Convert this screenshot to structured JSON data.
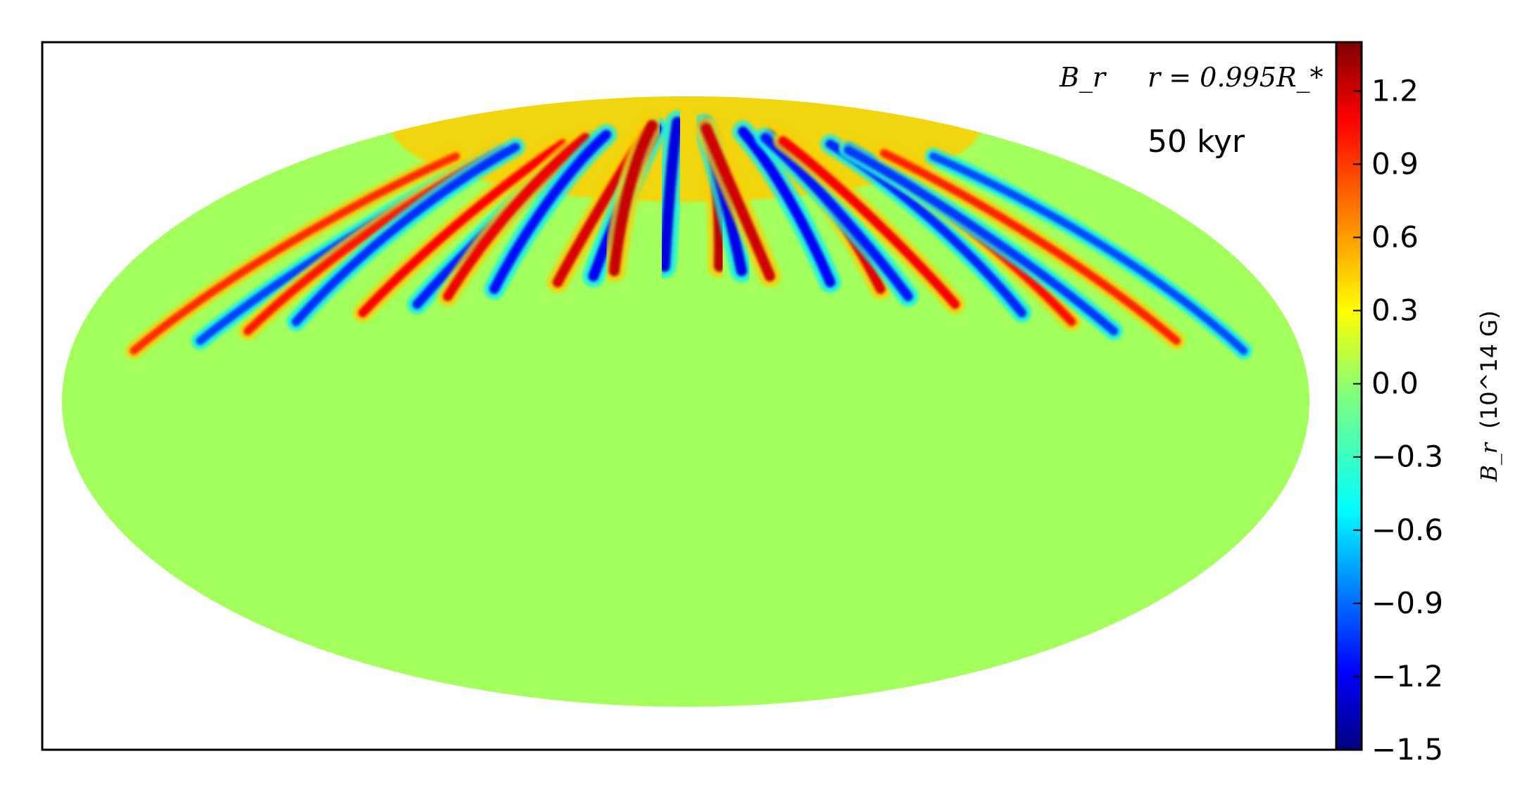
{
  "chart_data": {
    "type": "heatmap",
    "projection": "mollweide",
    "quantity_label": "B_r",
    "radius_label": "r = 0.995R_*",
    "time_label": "50 kyr",
    "colorbar": {
      "label_symbol": "B_r",
      "label_unit": "(10^14 G)",
      "colormap": "jet",
      "range": [
        -1.5,
        1.4
      ],
      "ticks": [
        1.2,
        0.9,
        0.6,
        0.3,
        0.0,
        -0.3,
        -0.6,
        -0.9,
        -1.2,
        -1.5
      ],
      "tick_labels": [
        "1.2",
        "0.9",
        "0.6",
        "0.3",
        "0.0",
        "−0.3",
        "−0.6",
        "−0.9",
        "−1.2",
        "−1.5"
      ]
    },
    "background_value": 0.05,
    "features": [
      {
        "kind": "polar-cap",
        "hemisphere": "north",
        "value": 0.45
      },
      {
        "kind": "meridional-bands",
        "hemisphere": "north",
        "count": 24,
        "peak_values": [
          1.3,
          -1.3
        ]
      }
    ],
    "colors": {
      "jet_stops": [
        "#00007f",
        "#0000ff",
        "#007fff",
        "#00ffff",
        "#7fff7f",
        "#ffff00",
        "#ff7f00",
        "#ff0000",
        "#7f0000"
      ]
    }
  }
}
